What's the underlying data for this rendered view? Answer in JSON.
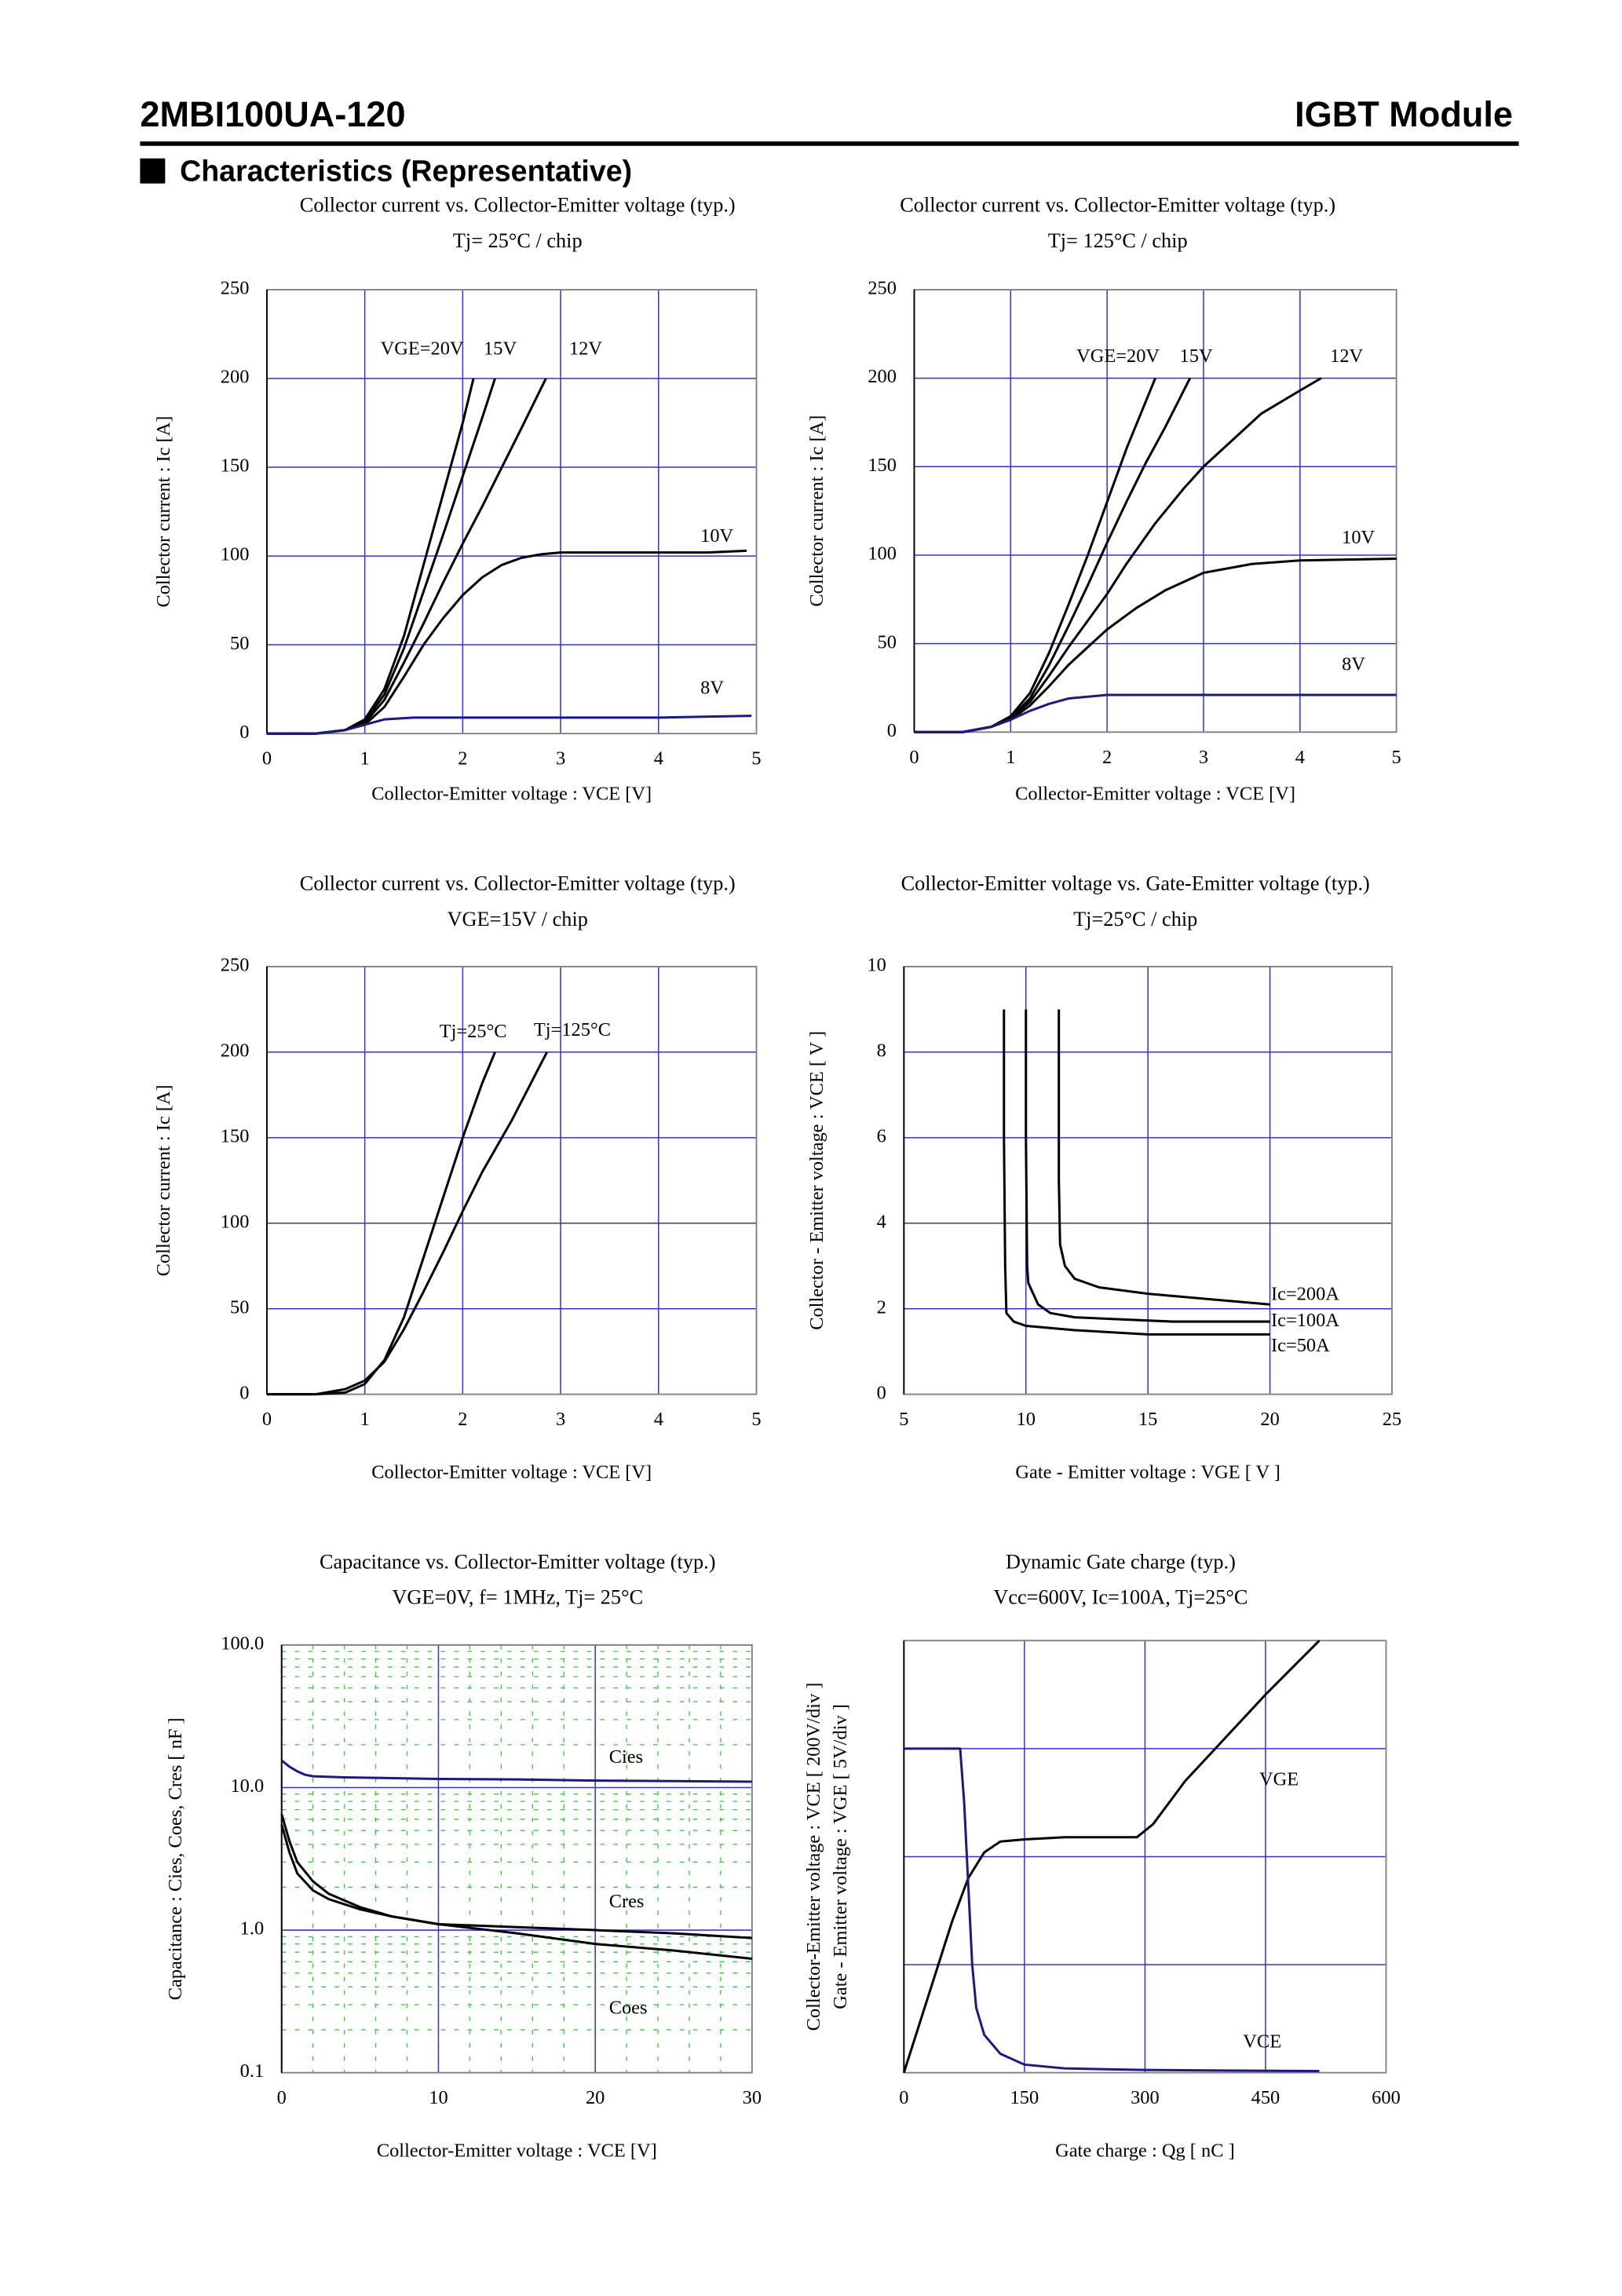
{
  "header": {
    "model": "2MBI100UA-120",
    "product": "IGBT Module",
    "section": "Characteristics (Representative)"
  },
  "chart_data": [
    {
      "type": "line",
      "title": "Collector current vs. Collector-Emitter voltage (typ.)",
      "subtitle": "Tj= 25°C / chip",
      "x_label": "Collector-Emitter voltage : VCE [V]",
      "y_label": "Collector current : Ic [A]",
      "xlim": [
        0,
        5
      ],
      "xticks": [
        0,
        1,
        2,
        3,
        4,
        5
      ],
      "ylim": [
        0,
        250
      ],
      "yticks": [
        0,
        50,
        100,
        150,
        200,
        250
      ],
      "grid": true,
      "series": [
        {
          "name": "VGE=20V",
          "color": "#000000",
          "x": [
            0,
            0.5,
            0.8,
            1.0,
            1.2,
            1.4,
            1.6,
            1.8,
            2.0,
            2.11
          ],
          "values": [
            0,
            0,
            2,
            8,
            25,
            55,
            95,
            135,
            175,
            200
          ]
        },
        {
          "name": "15V",
          "color": "#000000",
          "x": [
            0,
            0.5,
            0.8,
            1.0,
            1.2,
            1.4,
            1.6,
            1.8,
            2.0,
            2.2,
            2.33
          ],
          "values": [
            0,
            0,
            2,
            7,
            22,
            48,
            80,
            112,
            145,
            178,
            200
          ]
        },
        {
          "name": "12V",
          "color": "#000000",
          "x": [
            0,
            0.5,
            0.8,
            1.0,
            1.2,
            1.4,
            1.6,
            1.8,
            2.0,
            2.2,
            2.4,
            2.6,
            2.85
          ],
          "values": [
            0,
            0,
            2,
            6,
            19,
            40,
            62,
            85,
            107,
            128,
            150,
            172,
            200
          ]
        },
        {
          "name": "10V",
          "color": "#000000",
          "x": [
            0,
            0.5,
            0.8,
            1.0,
            1.2,
            1.4,
            1.6,
            1.8,
            2.0,
            2.2,
            2.4,
            2.6,
            2.8,
            3.0,
            3.5,
            4.0,
            4.5,
            4.9
          ],
          "values": [
            0,
            0,
            2,
            5,
            15,
            32,
            50,
            65,
            78,
            88,
            95,
            99,
            101,
            102,
            102,
            102,
            102,
            103
          ]
        },
        {
          "name": "8V",
          "color": "#1a1a80",
          "x": [
            0,
            0.5,
            0.8,
            1.0,
            1.2,
            1.5,
            2,
            3,
            4,
            4.95
          ],
          "values": [
            0,
            0,
            2,
            5,
            8,
            9,
            9,
            9,
            9,
            10
          ]
        }
      ]
    },
    {
      "type": "line",
      "title": "Collector current vs. Collector-Emitter voltage (typ.)",
      "subtitle": "Tj= 125°C / chip",
      "x_label": "Collector-Emitter voltage : VCE [V]",
      "y_label": "Collector current : Ic [A]",
      "xlim": [
        0,
        5
      ],
      "xticks": [
        0,
        1,
        2,
        3,
        4,
        5
      ],
      "ylim": [
        0,
        250
      ],
      "yticks": [
        0,
        50,
        100,
        150,
        200,
        250
      ],
      "grid": true,
      "series": [
        {
          "name": "VGE=20V",
          "color": "#000000",
          "x": [
            0,
            0.5,
            0.8,
            1.0,
            1.2,
            1.4,
            1.6,
            1.8,
            2.0,
            2.2,
            2.5
          ],
          "values": [
            0,
            0,
            3,
            9,
            22,
            45,
            72,
            100,
            130,
            160,
            200
          ]
        },
        {
          "name": "15V",
          "color": "#000000",
          "x": [
            0,
            0.5,
            0.8,
            1.0,
            1.2,
            1.4,
            1.6,
            1.8,
            2.0,
            2.2,
            2.4,
            2.6,
            2.86
          ],
          "values": [
            0,
            0,
            3,
            8,
            19,
            38,
            60,
            83,
            107,
            130,
            152,
            172,
            200
          ]
        },
        {
          "name": "12V",
          "color": "#000000",
          "x": [
            0,
            0.5,
            0.8,
            1.0,
            1.2,
            1.4,
            1.6,
            1.8,
            2.0,
            2.2,
            2.5,
            2.8,
            3.0,
            3.3,
            3.6,
            4.0,
            4.22
          ],
          "values": [
            0,
            0,
            3,
            8,
            17,
            32,
            48,
            63,
            78,
            95,
            118,
            138,
            150,
            165,
            180,
            193,
            200
          ]
        },
        {
          "name": "10V",
          "color": "#000000",
          "x": [
            0,
            0.5,
            0.8,
            1.0,
            1.2,
            1.4,
            1.6,
            1.8,
            2.0,
            2.3,
            2.6,
            3.0,
            3.5,
            4.0,
            5.0
          ],
          "values": [
            0,
            0,
            3,
            7,
            15,
            26,
            38,
            48,
            58,
            70,
            80,
            90,
            95,
            97,
            98
          ]
        },
        {
          "name": "8V",
          "color": "#1a1a80",
          "x": [
            0,
            0.5,
            0.8,
            1.0,
            1.2,
            1.4,
            1.6,
            1.8,
            2.0,
            3,
            4,
            5
          ],
          "values": [
            0,
            0,
            3,
            7,
            12,
            16,
            19,
            20,
            21,
            21,
            21,
            21
          ]
        }
      ]
    },
    {
      "type": "line",
      "title": "Collector current vs. Collector-Emitter voltage (typ.)",
      "subtitle": "VGE=15V / chip",
      "x_label": "Collector-Emitter voltage : VCE [V]",
      "y_label": "Collector current : Ic [A]",
      "xlim": [
        0,
        5
      ],
      "xticks": [
        0,
        1,
        2,
        3,
        4,
        5
      ],
      "ylim": [
        0,
        250
      ],
      "yticks": [
        0,
        50,
        100,
        150,
        200,
        250
      ],
      "grid": true,
      "series": [
        {
          "name": "Tj=25°C",
          "color": "#000000",
          "x": [
            0,
            0.5,
            0.8,
            1.0,
            1.2,
            1.4,
            1.6,
            1.8,
            2.0,
            2.2,
            2.33
          ],
          "values": [
            0,
            0,
            1,
            6,
            20,
            45,
            80,
            115,
            150,
            182,
            200
          ]
        },
        {
          "name": "Tj=125°C",
          "color": "#000000",
          "x": [
            0,
            0.5,
            0.8,
            1.0,
            1.2,
            1.4,
            1.6,
            1.8,
            2.0,
            2.2,
            2.5,
            2.86
          ],
          "values": [
            0,
            0,
            3,
            8,
            19,
            38,
            60,
            83,
            107,
            130,
            160,
            200
          ]
        }
      ]
    },
    {
      "type": "line",
      "title": "Collector-Emitter voltage  vs. Gate-Emitter voltage (typ.)",
      "subtitle": "Tj=25°C / chip",
      "x_label": "Gate - Emitter voltage  :  VGE  [ V ]",
      "y_label": "Collector - Emitter voltage  :  VCE  [ V ]",
      "xlim": [
        5,
        25
      ],
      "xticks": [
        5,
        10,
        15,
        20,
        25
      ],
      "ylim": [
        0,
        10
      ],
      "yticks": [
        0,
        2,
        4,
        6,
        8,
        10
      ],
      "grid": true,
      "series": [
        {
          "name": "Ic=200A",
          "color": "#000000",
          "x": [
            11.35,
            11.35,
            11.4,
            11.6,
            12,
            13,
            15,
            17,
            20
          ],
          "values": [
            9,
            5,
            3.5,
            3.0,
            2.7,
            2.5,
            2.35,
            2.25,
            2.1
          ]
        },
        {
          "name": "Ic=100A",
          "color": "#000000",
          "x": [
            10,
            10,
            10.05,
            10.1,
            10.5,
            11,
            12,
            14,
            16,
            20
          ],
          "values": [
            9,
            6,
            3,
            2.6,
            2.1,
            1.9,
            1.8,
            1.75,
            1.7,
            1.7
          ]
        },
        {
          "name": "Ic=50A",
          "color": "#000000",
          "x": [
            9.1,
            9.1,
            9.15,
            9.2,
            9.5,
            10,
            12,
            15,
            20
          ],
          "values": [
            9,
            6,
            3,
            1.9,
            1.7,
            1.6,
            1.5,
            1.4,
            1.4
          ]
        }
      ]
    },
    {
      "type": "line",
      "title": "Capacitance  vs.  Collector-Emitter voltage  (typ.)",
      "subtitle": "VGE=0V,  f= 1MHz,  Tj= 25°C",
      "x_label": "Collector-Emitter voltage : VCE [V]",
      "y_label": "Capacitance  :  Cies, Coes, Cres  [ nF ]",
      "xlim": [
        0,
        30
      ],
      "xticks": [
        0,
        10,
        20,
        30
      ],
      "ylim": [
        0.1,
        100
      ],
      "y_scale": "log",
      "yticks": [
        0.1,
        {
          "value": 1,
          "label": "1.0"
        },
        {
          "value": 10,
          "label": "10.0"
        },
        {
          "value": 100,
          "label": "100.0"
        }
      ],
      "grid": true,
      "minor_grid": true,
      "series": [
        {
          "name": "Cies",
          "color": "#1a1a80",
          "x": [
            0,
            0.5,
            1,
            1.5,
            2,
            4,
            6,
            10,
            15,
            20,
            25,
            30
          ],
          "values": [
            15.5,
            14,
            13,
            12.3,
            12,
            11.8,
            11.7,
            11.5,
            11.4,
            11.2,
            11.1,
            11.0
          ]
        },
        {
          "name": "Cres",
          "color": "#000000",
          "x": [
            0,
            0.5,
            1,
            2,
            3,
            5,
            7,
            10,
            15,
            20,
            25,
            30
          ],
          "values": [
            6.5,
            4.2,
            3.0,
            2.2,
            1.8,
            1.45,
            1.25,
            1.1,
            1.05,
            1.0,
            0.95,
            0.88
          ]
        },
        {
          "name": "Coes",
          "color": "#000000",
          "x": [
            0,
            0.5,
            1,
            2,
            3,
            5,
            7,
            10,
            15,
            20,
            25,
            30
          ],
          "values": [
            5.5,
            3.5,
            2.5,
            1.9,
            1.65,
            1.4,
            1.25,
            1.1,
            0.95,
            0.8,
            0.72,
            0.63
          ]
        }
      ]
    },
    {
      "type": "line",
      "title": "Dynamic Gate charge  (typ.)",
      "subtitle": "Vcc=600V, Ic=100A, Tj=25°C",
      "subtitle_color": "#0000ff",
      "x_label": "Gate charge  :  Qg  [ nC ]",
      "y_label": [
        "Collector-Emitter voltage : VCE [ 200V/div ]",
        "Gate - Emitter voltage  :  VGE     [ 5V/div ]"
      ],
      "xlim": [
        0,
        600
      ],
      "xticks": [
        0,
        150,
        300,
        450,
        600
      ],
      "ylim": [
        0,
        800
      ],
      "yticks": [
        200,
        400,
        600
      ],
      "ytick_labels": false,
      "y2lim": [
        0,
        20
      ],
      "grid": true,
      "series": [
        {
          "name": "VGE",
          "color": "#000000",
          "axis": "y2",
          "x": [
            0,
            30,
            60,
            80,
            100,
            120,
            150,
            200,
            290,
            310,
            350,
            400,
            450,
            517
          ],
          "values": [
            0,
            3.5,
            7,
            9,
            10.2,
            10.7,
            10.8,
            10.9,
            10.9,
            11.5,
            13.5,
            15.5,
            17.5,
            20
          ]
        },
        {
          "name": "VCE",
          "color": "#1a1a80",
          "x": [
            0,
            70,
            75,
            80,
            85,
            90,
            100,
            120,
            150,
            200,
            300,
            400,
            517
          ],
          "values": [
            600,
            600,
            500,
            350,
            200,
            120,
            70,
            35,
            15,
            8,
            5,
            4,
            3
          ]
        }
      ]
    }
  ]
}
